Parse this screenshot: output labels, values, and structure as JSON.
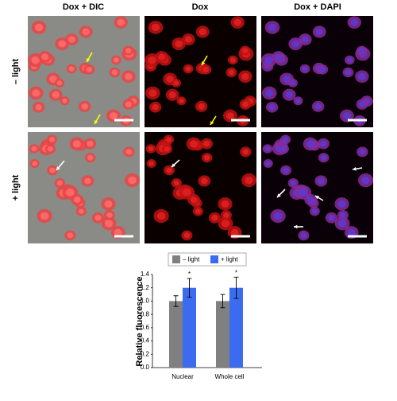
{
  "panels": {
    "columns": [
      "Dox + DIC",
      "Dox",
      "Dox + DAPI"
    ],
    "rows": [
      "– light",
      "+ light"
    ]
  },
  "chart_data": {
    "type": "bar",
    "ylabel": "Relative fluorescence",
    "categories": [
      "Nuclear",
      "Whole cell"
    ],
    "series": [
      {
        "name": "– light",
        "color": "#808080",
        "values": [
          1.0,
          1.0
        ],
        "errors": [
          0.08,
          0.1
        ]
      },
      {
        "name": "+ light",
        "color": "#3b6cf0",
        "values": [
          1.2,
          1.2
        ],
        "errors": [
          0.14,
          0.16
        ]
      }
    ],
    "annotations": [
      "*",
      "*"
    ],
    "ylim": [
      0,
      1.4
    ],
    "yticks": [
      {
        "value": 0,
        "label": "0.0"
      },
      {
        "value": 0.2,
        "label": "0.2"
      },
      {
        "value": 0.4,
        "label": "0.4"
      },
      {
        "value": 0.6,
        "label": "0.6"
      },
      {
        "value": 0.8,
        "label": "0.8"
      },
      {
        "value": 1,
        "label": "1.0"
      },
      {
        "value": 1.2,
        "label": "1.2"
      },
      {
        "value": 1.4,
        "label": "1.4"
      }
    ],
    "legend": "top"
  }
}
